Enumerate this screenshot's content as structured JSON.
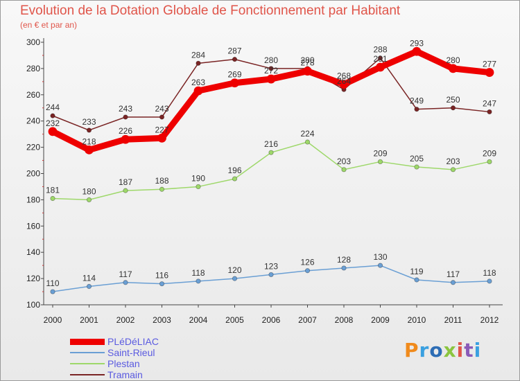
{
  "header": {
    "title": "Evolution de la Dotation Globale de Fonctionnement par Habitant",
    "subtitle": "(en € et par an)"
  },
  "logo": {
    "text": "Proxiti",
    "colors": [
      "#f08a1c",
      "#3aa0e0",
      "#2d6db5",
      "#8bc53f",
      "#e0554a",
      "#8a5ab8",
      "#3aa0e0"
    ]
  },
  "colors": {
    "title": "#e0554a",
    "legend_text": "#5a5ae0",
    "axis": "#444444"
  },
  "chart_data": {
    "type": "line",
    "title": "Evolution de la Dotation Globale de Fonctionnement par Habitant",
    "subtitle": "(en € et par an)",
    "x": [
      "2000",
      "2001",
      "2002",
      "2003",
      "2004",
      "2005",
      "2006",
      "2007",
      "2008",
      "2009",
      "2010",
      "2011",
      "2012"
    ],
    "ylim": [
      100,
      300
    ],
    "yticks": [
      100,
      120,
      140,
      160,
      180,
      200,
      220,
      240,
      260,
      280,
      300
    ],
    "grid": false,
    "legend_position": "bottom-left",
    "series": [
      {
        "name": "PLéDéLIAC",
        "color": "#ee0000",
        "width": 9,
        "values": [
          232,
          218,
          226,
          227,
          263,
          269,
          272,
          278,
          268,
          281,
          293,
          280,
          277
        ]
      },
      {
        "name": "Saint-Rieul",
        "color": "#6a9fd4",
        "width": 1.5,
        "values": [
          110,
          114,
          117,
          116,
          118,
          120,
          123,
          126,
          128,
          130,
          119,
          117,
          118
        ]
      },
      {
        "name": "Plestan",
        "color": "#9ed86a",
        "width": 1.5,
        "values": [
          181,
          180,
          187,
          188,
          190,
          196,
          216,
          224,
          203,
          209,
          205,
          203,
          209
        ]
      },
      {
        "name": "Tramain",
        "color": "#7a2424",
        "width": 1.5,
        "values": [
          244,
          233,
          243,
          243,
          284,
          287,
          280,
          280,
          264,
          288,
          249,
          250,
          247
        ]
      }
    ]
  }
}
